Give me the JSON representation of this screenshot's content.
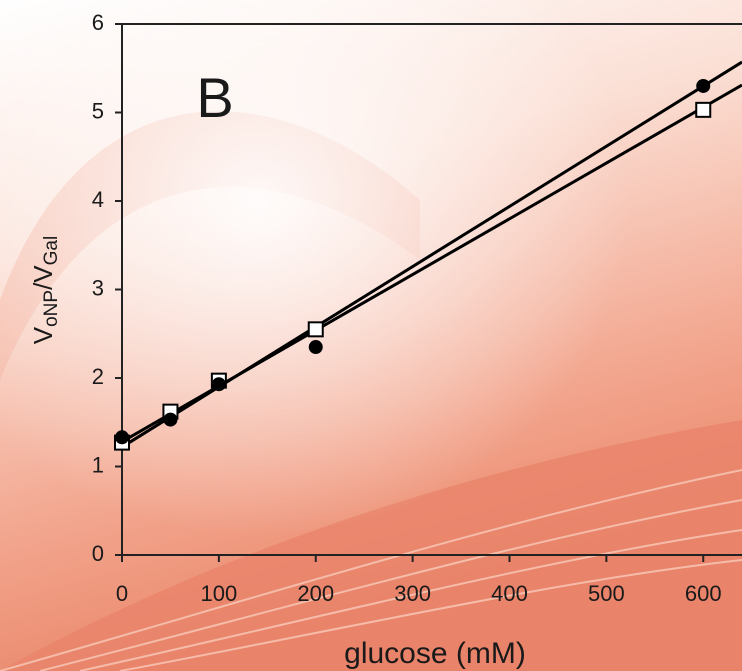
{
  "chart_data": {
    "type": "scatter",
    "annotation": "B",
    "xlabel": "glucose (mM)",
    "ylabel_parts": [
      "V",
      "oNP",
      "/V",
      "Gal"
    ],
    "xlim": [
      0,
      640
    ],
    "ylim": [
      0,
      6
    ],
    "xticks": [
      0,
      100,
      200,
      300,
      400,
      500,
      600
    ],
    "yticks": [
      0,
      1,
      2,
      3,
      4,
      5,
      6
    ],
    "series": [
      {
        "marker": "circle",
        "color": "#000000",
        "x": [
          0,
          50,
          100,
          200,
          600
        ],
        "values": [
          1.33,
          1.53,
          1.93,
          2.35,
          5.3
        ]
      },
      {
        "marker": "square",
        "color": "#000000",
        "x": [
          0,
          50,
          100,
          200,
          600
        ],
        "values": [
          1.27,
          1.62,
          1.97,
          2.55,
          5.03
        ]
      },
      {
        "marker": "line",
        "color": "#000000",
        "x": [
          0,
          640
        ],
        "values": [
          1.22,
          5.57
        ]
      },
      {
        "marker": "line",
        "color": "#000000",
        "x": [
          0,
          640
        ],
        "values": [
          1.28,
          5.31
        ]
      }
    ]
  }
}
